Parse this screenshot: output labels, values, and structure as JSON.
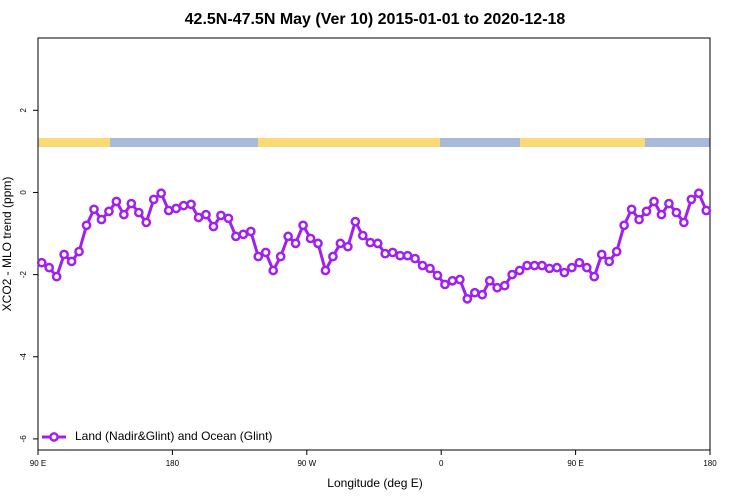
{
  "chart_data": {
    "type": "line",
    "title": "42.5N-47.5N May (Ver 10)   2015-01-01 to 2020-12-18",
    "x_label": "Longitude (deg E)",
    "y_label": "XCO2 - MLO trend (ppm)",
    "x": [
      92.5,
      97.5,
      102.5,
      107.5,
      112.5,
      117.5,
      122.5,
      127.5,
      132.5,
      137.5,
      142.5,
      147.5,
      152.5,
      157.5,
      162.5,
      167.5,
      172.5,
      177.5,
      182.5,
      187.5,
      192.5,
      197.5,
      202.5,
      207.5,
      212.5,
      217.5,
      222.5,
      227.5,
      232.5,
      237.5,
      242.5,
      247.5,
      252.5,
      257.5,
      262.5,
      267.5,
      272.5,
      277.5,
      282.5,
      287.5,
      292.5,
      297.5,
      302.5,
      307.5,
      312.5,
      317.5,
      322.5,
      327.5,
      332.5,
      337.5,
      342.5,
      347.5,
      352.5,
      357.5,
      362.5,
      367.5,
      372.5,
      377.5,
      382.5,
      387.5,
      392.5,
      397.5,
      402.5,
      407.5,
      412.5,
      417.5,
      422.5,
      427.5,
      432.5,
      437.5,
      442.5,
      447.5,
      452.5,
      457.5,
      462.5,
      467.5,
      472.5,
      477.5,
      482.5,
      487.5,
      492.5,
      497.5,
      502.5,
      507.5,
      512.5,
      517.5,
      522.5,
      527.5,
      532.5,
      537.5
    ],
    "series": [
      {
        "name": "Land (Nadir&Glint) and Ocean (Glint)",
        "color": "#a020f0",
        "values": [
          -1.71,
          -1.83,
          -2.05,
          -1.51,
          -1.68,
          -1.44,
          -0.8,
          -0.41,
          -0.66,
          -0.46,
          -0.22,
          -0.54,
          -0.27,
          -0.49,
          -0.73,
          -0.17,
          -0.02,
          -0.44,
          -0.39,
          -0.32,
          -0.29,
          -0.61,
          -0.54,
          -0.83,
          -0.56,
          -0.63,
          -1.07,
          -1.02,
          -0.95,
          -1.56,
          -1.46,
          -1.9,
          -1.56,
          -1.07,
          -1.24,
          -0.8,
          -1.12,
          -1.24,
          -1.9,
          -1.56,
          -1.24,
          -1.32,
          -0.71,
          -1.05,
          -1.22,
          -1.24,
          -1.49,
          -1.46,
          -1.54,
          -1.54,
          -1.61,
          -1.78,
          -1.85,
          -2.02,
          -2.24,
          -2.15,
          -2.12,
          -2.59,
          -2.44,
          -2.49,
          -2.15,
          -2.32,
          -2.27,
          -2.0,
          -1.9,
          -1.78,
          -1.78,
          -1.78,
          -1.85,
          -1.83,
          -1.95,
          -1.83,
          -1.71,
          -1.83,
          -2.05,
          -1.51,
          -1.68,
          -1.44,
          -0.8,
          -0.41,
          -0.66,
          -0.46,
          -0.22,
          -0.54,
          -0.27,
          -0.49,
          -0.73,
          -0.17,
          -0.02,
          -0.44
        ]
      }
    ],
    "xlim": [
      90,
      540
    ],
    "xticks": [
      {
        "value": 90,
        "label": "90 E"
      },
      180,
      {
        "value": 270,
        "label": "90 W"
      },
      {
        "value": 360,
        "label": "0"
      },
      {
        "value": 450,
        "label": "90 E"
      },
      {
        "value": 540,
        "label": "180"
      }
    ],
    "ylim": [
      -6.27,
      3.76
    ],
    "yticks": [
      -6,
      -4,
      -2,
      0,
      2
    ],
    "legend": "bottom-left"
  }
}
